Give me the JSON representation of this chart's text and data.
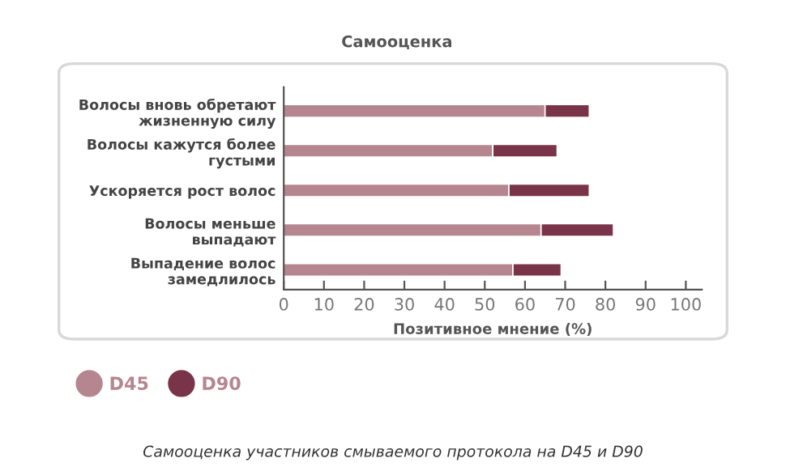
{
  "chart_data": {
    "type": "bar",
    "orientation": "horizontal",
    "stacked": true,
    "title": "Самооценка",
    "xlabel": "Позитивное мнение (%)",
    "categories": [
      "Волосы вновь обретают\nжизненную силу",
      "Волосы кажутся более\nгустыми",
      "Ускоряется рост волос",
      "Волосы меньше\nвыпадают",
      "Выпадение волос\nзамедлилось"
    ],
    "series": [
      {
        "name": "D45",
        "color": "#b58690",
        "values": [
          65,
          52,
          56,
          64,
          57
        ]
      },
      {
        "name": "D90",
        "color": "#7a3449",
        "values": [
          11,
          16,
          20,
          18,
          12
        ]
      }
    ],
    "xlim": [
      0,
      104
    ],
    "xticks": [
      0,
      10,
      20,
      30,
      40,
      50,
      60,
      70,
      80,
      90,
      100
    ],
    "grid": false,
    "legend": "bottom left",
    "annotations": [
      "Самооценка участников смываемого протокола на D45 и D90"
    ]
  }
}
